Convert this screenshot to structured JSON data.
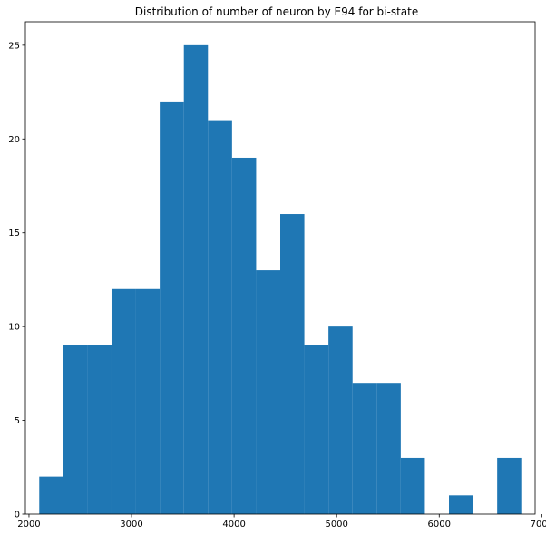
{
  "chart_data": {
    "type": "bar",
    "title": "Distribution of number of neuron by E94 for bi-state",
    "xlabel": "",
    "ylabel": "",
    "bin_edges": [
      2100,
      2335,
      2570,
      2805,
      3040,
      3275,
      3510,
      3745,
      3980,
      4215,
      4450,
      4685,
      4920,
      5155,
      5390,
      5625,
      5860,
      6095,
      6330,
      6565,
      6800
    ],
    "values": [
      2,
      9,
      9,
      12,
      12,
      22,
      25,
      21,
      19,
      13,
      16,
      9,
      10,
      7,
      7,
      3,
      0,
      1,
      0,
      3
    ],
    "xlim": [
      1965,
      6935
    ],
    "ylim": [
      0,
      26.25
    ],
    "xticks": [
      2000,
      3000,
      4000,
      5000,
      6000,
      7000
    ],
    "yticks": [
      0,
      5,
      10,
      15,
      20,
      25
    ],
    "grid": false,
    "bar_color": "#1f77b4"
  }
}
